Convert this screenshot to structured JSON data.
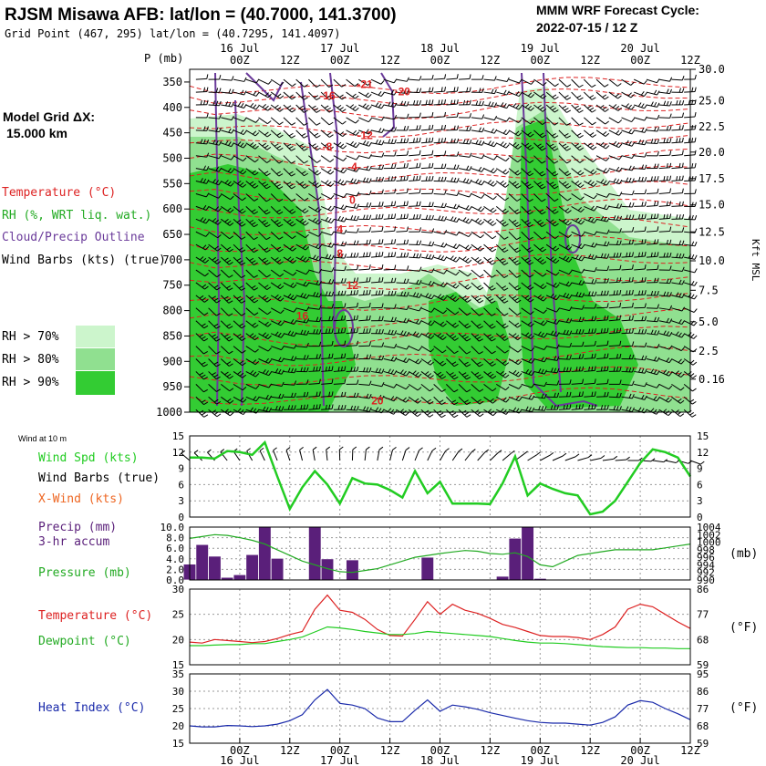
{
  "header": {
    "station": "RJSM Misawa AFB:  lat/lon = (40.7000, 141.3700)",
    "grid_point": "Grid Point (467, 295) lat/lon = (40.7295, 141.4097)",
    "model": "MMM WRF Forecast Cycle:",
    "cycle": "2022-07-15 / 12  Z"
  },
  "time_axis": {
    "hour_labels": [
      "00Z",
      "12Z",
      "00Z",
      "12Z",
      "00Z",
      "12Z",
      "00Z",
      "12Z",
      "00Z",
      "12Z"
    ],
    "hour_labels_bottom": [
      "00Z",
      "12Z",
      "00Z",
      "12Z",
      "00Z",
      "12Z",
      "00Z",
      "12Z",
      "00Z",
      "12Z"
    ],
    "day_labels": [
      "16 Jul",
      "17 Jul",
      "18 Jul",
      "19 Jul",
      "20 Jul"
    ],
    "day_labels_bottom": [
      "16 Jul",
      "17 Jul",
      "18 Jul",
      "19 Jul",
      "20 Jul"
    ]
  },
  "legend": {
    "grid_title": "Model Grid ΔX:",
    "grid_value": "15.000 km",
    "temperature": "Temperature (°C)",
    "rh": "RH (%, WRT liq. wat.)",
    "cloud": "Cloud/Precip Outline",
    "barbs": "Wind Barbs (kts) (true)",
    "rh70": "RH > 70%",
    "rh80": "RH > 80%",
    "rh90": "RH > 90%"
  },
  "colors": {
    "rh70": "#ccf5cc",
    "rh80": "#90e090",
    "rh90": "#33cc33",
    "temperature": "#dd2222",
    "cloud": "#6a3a9a",
    "wind_speed": "#22cc22",
    "precip": "#5a1f7a",
    "pressure": "#22aa22",
    "dewpoint": "#22cc22",
    "heat_index": "#1a2aaa",
    "xwind": "#ee6622"
  },
  "panels": {
    "sounding": {
      "p_label": "P (mb)",
      "kft_label": "Kft MSL",
      "pressure_ticks": [
        "350",
        "400",
        "450",
        "500",
        "550",
        "600",
        "650",
        "700",
        "750",
        "800",
        "850",
        "900",
        "950",
        "1000"
      ],
      "kft_ticks": [
        "30.0",
        "25.0",
        "22.5",
        "20.0",
        "17.5",
        "15.0",
        "12.5",
        "10.0",
        "7.5",
        "5.0",
        "2.5",
        "0.16"
      ]
    },
    "wind": {
      "caption": "Wind at 10 m",
      "spd_label": "Wind Spd (kts)",
      "barbs_label": "Wind Barbs (true)",
      "xwind_label": "X-Wind (kts)",
      "y_ticks": [
        "15",
        "12",
        "9",
        "6",
        "3",
        "0"
      ]
    },
    "precip": {
      "label1": "Precip (mm)",
      "label2": "3-hr accum",
      "pressure_label": "Pressure (mb)",
      "unit_right": "(mb)",
      "y_ticks": [
        "10.0",
        "8.0",
        "6.0",
        "4.0",
        "2.0",
        "0.0"
      ],
      "p_ticks": [
        "1004",
        "1002",
        "1000",
        "998",
        "996",
        "994",
        "992",
        "990"
      ]
    },
    "temp": {
      "temp_label": "Temperature (°C)",
      "dew_label": "Dewpoint (°C)",
      "unit_right": "(°F)",
      "y_ticks": [
        "30",
        "25",
        "20",
        "15"
      ],
      "f_ticks": [
        "86",
        "77",
        "68",
        "59"
      ]
    },
    "heat": {
      "label": "Heat Index (°C)",
      "unit_right": "(°F)",
      "y_ticks": [
        "35",
        "30",
        "25",
        "20",
        "15"
      ],
      "f_ticks": [
        "95",
        "86",
        "77",
        "68",
        "59"
      ]
    }
  },
  "chart_data": [
    {
      "type": "heatmap",
      "name": "time-height cross section",
      "x": "forecast hour 0-120 (3-hourly), 2022-07-15 12Z to 2022-07-20 12Z",
      "ylim": [
        1000,
        325
      ],
      "temperature_labels": [
        {
          "value": "-21",
          "hour": 42,
          "p": 362
        },
        {
          "value": "-20",
          "hour": 51,
          "p": 376
        },
        {
          "value": "-16",
          "hour": 33,
          "p": 384
        },
        {
          "value": "-12",
          "hour": 42,
          "p": 462
        },
        {
          "value": "-8",
          "hour": 33,
          "p": 485
        },
        {
          "value": "-4",
          "hour": 39,
          "p": 524
        },
        {
          "value": "0",
          "hour": 39,
          "p": 590
        },
        {
          "value": "4",
          "hour": 36,
          "p": 647
        },
        {
          "value": "8",
          "hour": 36,
          "p": 695
        },
        {
          "value": "12",
          "hour": 39,
          "p": 758
        },
        {
          "value": "16",
          "hour": 27,
          "p": 818
        },
        {
          "value": "20",
          "hour": 45,
          "p": 985
        }
      ]
    },
    {
      "type": "line",
      "name": "wind speed 10 m",
      "x": [
        0,
        3,
        6,
        9,
        12,
        15,
        18,
        21,
        24,
        27,
        30,
        33,
        36,
        39,
        42,
        45,
        48,
        51,
        54,
        57,
        60,
        63,
        66,
        69,
        72,
        75,
        78,
        81,
        84,
        87,
        90,
        93,
        96,
        99,
        102,
        105,
        108,
        111,
        114,
        117,
        120
      ],
      "values": [
        11,
        11,
        10.8,
        12.2,
        12,
        11.5,
        13.8,
        7.5,
        1.5,
        5.5,
        8.5,
        6,
        2.5,
        7.2,
        6.2,
        6,
        5,
        3.6,
        8.5,
        4.4,
        6.5,
        2.5,
        2.5,
        2.5,
        2.4,
        6.2,
        11.2,
        4,
        6.2,
        5.2,
        4.4,
        4,
        0.5,
        1,
        3,
        6.5,
        10,
        12.5,
        12,
        11,
        7.5
      ],
      "ylim": [
        0,
        15
      ]
    },
    {
      "type": "bar",
      "name": "3-hr precip",
      "x": [
        0,
        3,
        6,
        9,
        12,
        15,
        18,
        21,
        24,
        27,
        30,
        33,
        36,
        39,
        42,
        45,
        48,
        51,
        54,
        57,
        60,
        63,
        66,
        69,
        72,
        75,
        78,
        81,
        84,
        87,
        90,
        93,
        96,
        99,
        102,
        105,
        108,
        111,
        114,
        117,
        120
      ],
      "values": [
        3,
        6.7,
        4.5,
        0.5,
        1,
        4.8,
        10,
        4.1,
        0,
        0,
        10,
        4,
        0,
        3.8,
        0,
        0,
        0,
        0,
        0,
        4.3,
        0,
        0,
        0,
        0,
        0,
        0.7,
        7.9,
        10,
        0.3,
        0,
        0,
        0,
        0,
        0,
        0,
        0,
        0,
        0,
        0,
        0,
        0
      ],
      "ylim": [
        0,
        10
      ]
    },
    {
      "type": "line",
      "name": "pressure",
      "x": [
        0,
        3,
        6,
        9,
        12,
        15,
        18,
        21,
        24,
        27,
        30,
        33,
        36,
        39,
        42,
        45,
        48,
        51,
        54,
        57,
        60,
        63,
        66,
        69,
        72,
        75,
        78,
        81,
        84,
        87,
        90,
        93,
        96,
        99,
        102,
        105,
        108,
        111,
        114,
        117,
        120
      ],
      "values": [
        1001,
        1001.5,
        1002,
        1001.8,
        1001.2,
        1000.5,
        999.5,
        998,
        996.5,
        995,
        994,
        993,
        992.2,
        992,
        992.5,
        993,
        994,
        995,
        996,
        996.5,
        997,
        997.4,
        997.8,
        997.6,
        997,
        996.8,
        997.2,
        996.2,
        994,
        993.5,
        995,
        996.5,
        997,
        997.5,
        998,
        998,
        998,
        998,
        998.5,
        999,
        999.5
      ],
      "ylim": [
        990,
        1004
      ]
    },
    {
      "type": "line",
      "name": "temperature",
      "x": [
        0,
        3,
        6,
        9,
        12,
        15,
        18,
        21,
        24,
        27,
        30,
        33,
        36,
        39,
        42,
        45,
        48,
        51,
        54,
        57,
        60,
        63,
        66,
        69,
        72,
        75,
        78,
        81,
        84,
        87,
        90,
        93,
        96,
        99,
        102,
        105,
        108,
        111,
        114,
        117,
        120
      ],
      "values": [
        19.5,
        19.3,
        20,
        19.8,
        19.6,
        19.4,
        19.6,
        20.2,
        21,
        21.6,
        26,
        28.8,
        25.8,
        25.4,
        24,
        22,
        20.8,
        20.7,
        24,
        27.5,
        25,
        27,
        25.8,
        25.2,
        24.2,
        23,
        22.4,
        21.6,
        20.8,
        20.6,
        20.6,
        20.4,
        20,
        21,
        22.5,
        26,
        27,
        26.5,
        25,
        23.5,
        22.2
      ],
      "ylim": [
        15,
        30
      ]
    },
    {
      "type": "line",
      "name": "dewpoint",
      "x": [
        0,
        3,
        6,
        9,
        12,
        15,
        18,
        21,
        24,
        27,
        30,
        33,
        36,
        39,
        42,
        45,
        48,
        51,
        54,
        57,
        60,
        63,
        66,
        69,
        72,
        75,
        78,
        81,
        84,
        87,
        90,
        93,
        96,
        99,
        102,
        105,
        108,
        111,
        114,
        117,
        120
      ],
      "values": [
        18.8,
        18.8,
        18.9,
        19,
        19,
        19.2,
        19.2,
        19.6,
        20,
        20.5,
        21.5,
        22.5,
        22.3,
        22,
        21.6,
        21.3,
        21,
        21,
        21.2,
        21.6,
        21.4,
        21.2,
        21,
        20.8,
        20.6,
        20.2,
        19.8,
        19.5,
        19.3,
        19.3,
        19.2,
        19,
        18.8,
        18.6,
        18.5,
        18.4,
        18.4,
        18.3,
        18.3,
        18.2,
        18.2
      ],
      "ylim": [
        15,
        30
      ]
    },
    {
      "type": "line",
      "name": "heat index",
      "x": [
        0,
        3,
        6,
        9,
        12,
        15,
        18,
        21,
        24,
        27,
        30,
        33,
        36,
        39,
        42,
        45,
        48,
        51,
        54,
        57,
        60,
        63,
        66,
        69,
        72,
        75,
        78,
        81,
        84,
        87,
        90,
        93,
        96,
        99,
        102,
        105,
        108,
        111,
        114,
        117,
        120
      ],
      "values": [
        20,
        19.7,
        19.7,
        20.1,
        20,
        19.8,
        20,
        20.5,
        21.5,
        23.2,
        27.5,
        30.5,
        26.5,
        26,
        25,
        22.3,
        21.2,
        21.2,
        24.5,
        27.5,
        24.2,
        26,
        25.5,
        24.8,
        23.8,
        23,
        22.2,
        21.5,
        21,
        20.8,
        20.8,
        20.5,
        20.2,
        21,
        22.6,
        26,
        27.3,
        26.8,
        25,
        23.5,
        21.8
      ],
      "ylim": [
        15,
        35
      ]
    }
  ]
}
